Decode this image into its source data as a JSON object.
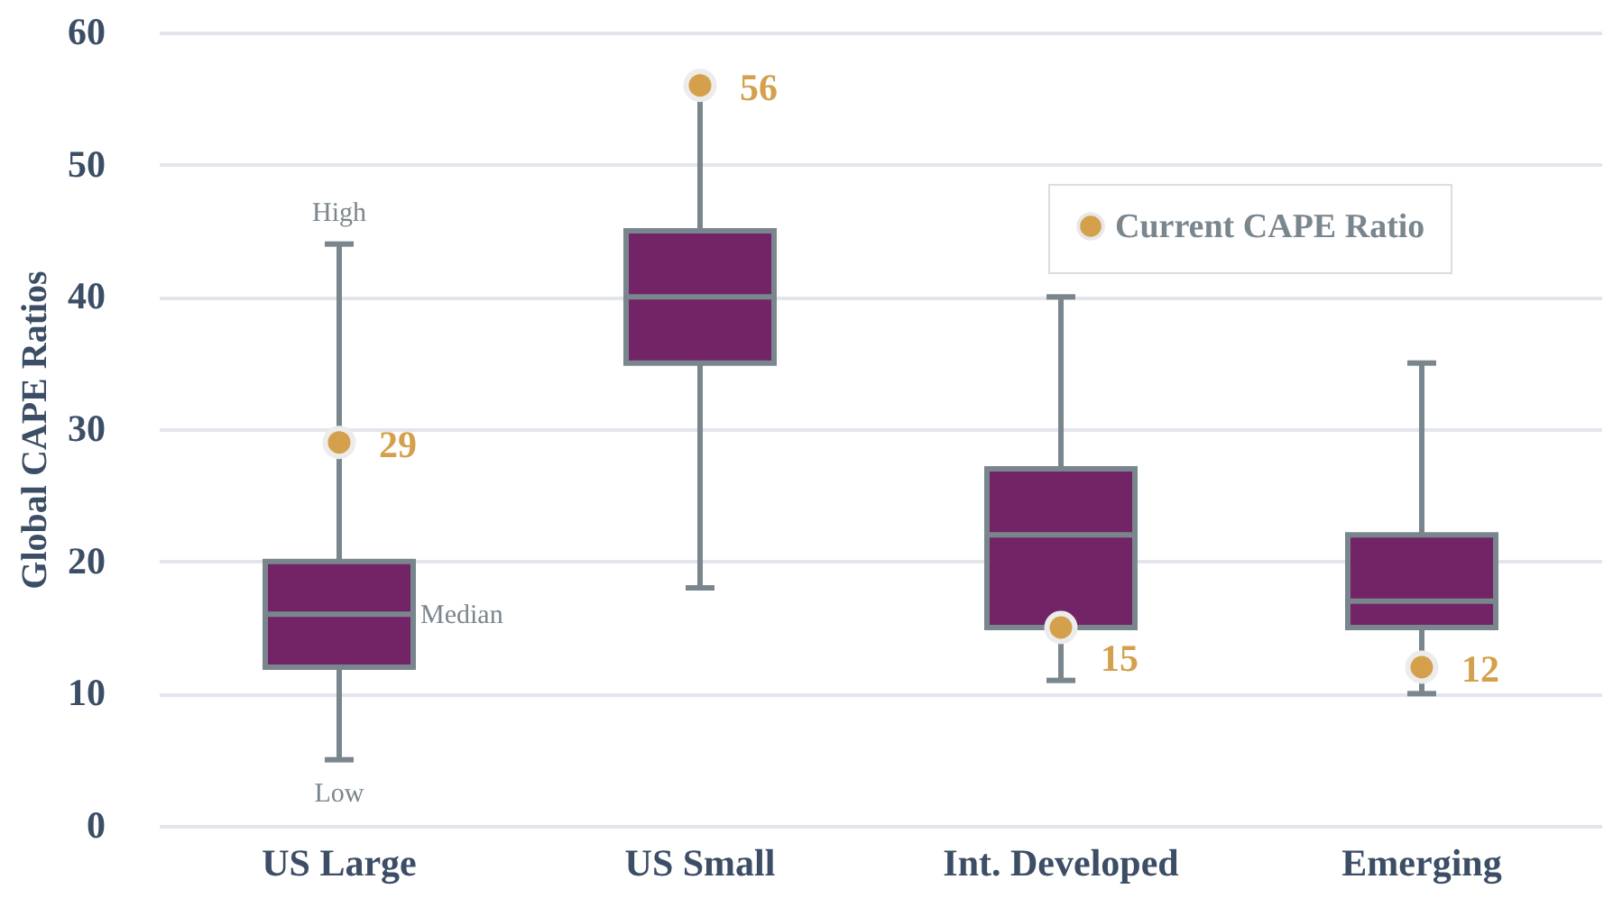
{
  "chart_data": {
    "type": "box",
    "ylabel": "Global CAPE Ratios",
    "categories": [
      "US Large",
      "US Small",
      "Int. Developed",
      "Emerging"
    ],
    "series": [
      {
        "color": "#722467",
        "boxes": [
          {
            "low": 5,
            "q1": 12,
            "median": 16,
            "q3": 20,
            "high": 44
          },
          {
            "low": 18,
            "q1": 35,
            "median": 40,
            "q3": 45,
            "high": 56
          },
          {
            "low": 11,
            "q1": 15,
            "median": 22,
            "q3": 27,
            "high": 40
          },
          {
            "low": 10,
            "q1": 15,
            "median": 17,
            "q3": 22,
            "high": 35
          }
        ]
      },
      {
        "type": "scatter",
        "name": "Current CAPE Ratio",
        "color": "#d4a04c",
        "x": [
          "US Large",
          "US Small",
          "Int. Developed",
          "Emerging"
        ],
        "values": [
          29,
          56,
          15,
          12
        ],
        "data_labels": true
      }
    ],
    "annotations": [
      {
        "text": "High",
        "x": "US Large",
        "y": 44
      },
      {
        "text": "Median",
        "x": "US Large",
        "y": 16
      },
      {
        "text": "Low",
        "x": "US Large",
        "y": 5
      }
    ],
    "ylim": [
      0,
      60
    ],
    "yticks": [
      0,
      10,
      20,
      30,
      40,
      50,
      60
    ],
    "grid": "y",
    "legend": "top right",
    "marker": "circle"
  }
}
